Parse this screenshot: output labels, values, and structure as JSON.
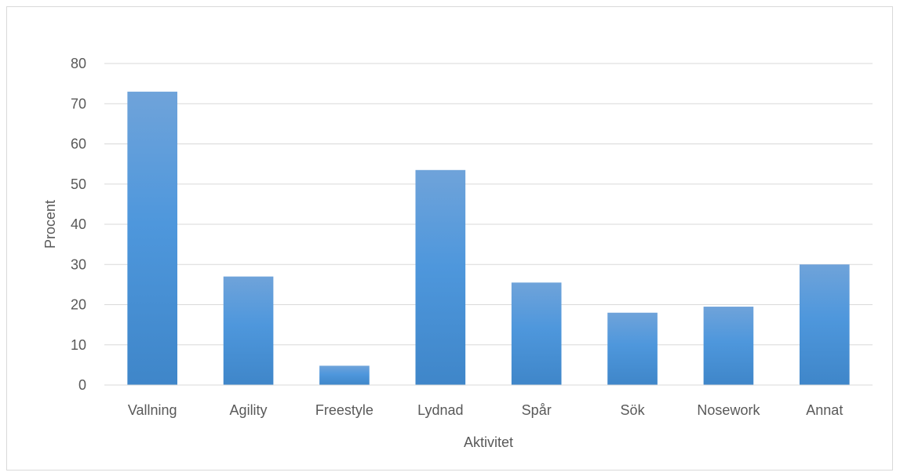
{
  "chart_data": {
    "type": "bar",
    "title": "",
    "xlabel": "Aktivitet",
    "ylabel": "Procent",
    "categories": [
      "Vallning",
      "Agility",
      "Freestyle",
      "Lydnad",
      "Spår",
      "Sök",
      "Nosework",
      "Annat"
    ],
    "values": [
      73,
      27,
      4.8,
      53.5,
      25.5,
      18,
      19.5,
      30
    ],
    "ylim": [
      0,
      80
    ],
    "yticks": [
      0,
      10,
      20,
      30,
      40,
      50,
      60,
      70,
      80
    ],
    "grid": true,
    "legend": "none",
    "bar_color": "#5b9bd5"
  }
}
